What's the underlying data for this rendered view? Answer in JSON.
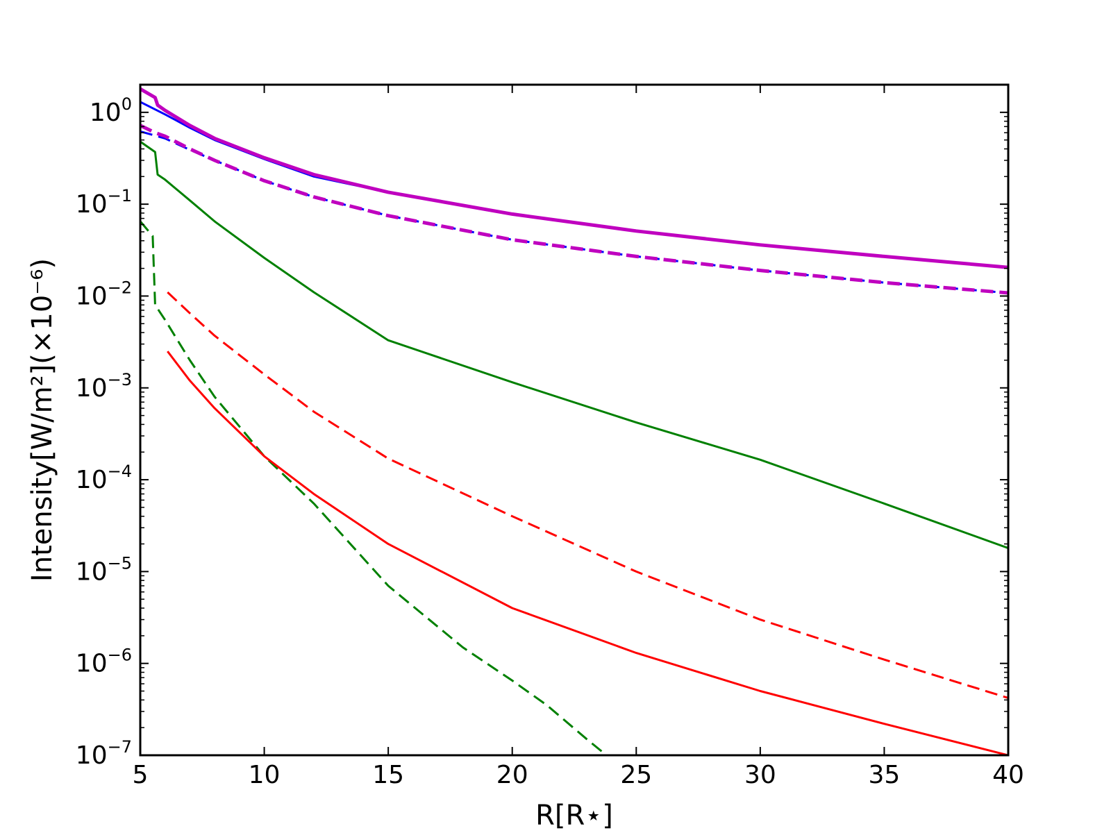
{
  "chart_data": {
    "type": "line",
    "xlabel": "R[R⋆]",
    "ylabel": "Intensity[W/m²](×10⁻⁶)",
    "xlim": [
      5,
      40
    ],
    "ylim": [
      1e-07,
      2
    ],
    "yscale": "log",
    "grid": false,
    "legend": "none",
    "x_ticks": [
      5,
      10,
      15,
      20,
      25,
      30,
      35,
      40
    ],
    "x_tick_labels": [
      "5",
      "10",
      "15",
      "20",
      "25",
      "30",
      "35",
      "40"
    ],
    "y_ticks": [
      1e-07,
      1e-06,
      1e-05,
      0.0001,
      0.001,
      0.01,
      0.1,
      1
    ],
    "y_tick_labels": [
      {
        "base": "10",
        "exp": "−7"
      },
      {
        "base": "10",
        "exp": "−6"
      },
      {
        "base": "10",
        "exp": "−5"
      },
      {
        "base": "10",
        "exp": "−4"
      },
      {
        "base": "10",
        "exp": "−3"
      },
      {
        "base": "10",
        "exp": "−2"
      },
      {
        "base": "10",
        "exp": "−1"
      },
      {
        "base": "10",
        "exp": "0"
      }
    ],
    "series": [
      {
        "color": "#0000ff",
        "dash": "solid",
        "width": 3,
        "points": [
          [
            5,
            1.3
          ],
          [
            6,
            0.95
          ],
          [
            7,
            0.68
          ],
          [
            8,
            0.5
          ],
          [
            10,
            0.31
          ],
          [
            12,
            0.2
          ],
          [
            15,
            0.135
          ],
          [
            20,
            0.078
          ],
          [
            25,
            0.051
          ],
          [
            30,
            0.036
          ],
          [
            35,
            0.027
          ],
          [
            40,
            0.0205
          ]
        ]
      },
      {
        "color": "#0000ff",
        "dash": "dashed",
        "width": 3,
        "points": [
          [
            5,
            0.62
          ],
          [
            6,
            0.52
          ],
          [
            7,
            0.39
          ],
          [
            8,
            0.3
          ],
          [
            10,
            0.18
          ],
          [
            12,
            0.12
          ],
          [
            15,
            0.075
          ],
          [
            20,
            0.041
          ],
          [
            25,
            0.027
          ],
          [
            30,
            0.019
          ],
          [
            35,
            0.014
          ],
          [
            40,
            0.0108
          ]
        ]
      },
      {
        "color": "#bf00bf",
        "dash": "solid",
        "width": 5,
        "points": [
          [
            5,
            1.8
          ],
          [
            5.6,
            1.45
          ],
          [
            5.7,
            1.2
          ],
          [
            6,
            1.05
          ],
          [
            7,
            0.72
          ],
          [
            8,
            0.52
          ],
          [
            10,
            0.32
          ],
          [
            12,
            0.21
          ],
          [
            15,
            0.135
          ],
          [
            20,
            0.078
          ],
          [
            25,
            0.051
          ],
          [
            30,
            0.036
          ],
          [
            35,
            0.027
          ],
          [
            40,
            0.0205
          ]
        ]
      },
      {
        "color": "#bf00bf",
        "dash": "dashed",
        "width": 5,
        "points": [
          [
            5,
            0.72
          ],
          [
            5.6,
            0.6
          ],
          [
            6,
            0.55
          ],
          [
            7,
            0.4
          ],
          [
            8,
            0.3
          ],
          [
            10,
            0.18
          ],
          [
            12,
            0.12
          ],
          [
            15,
            0.075
          ],
          [
            20,
            0.041
          ],
          [
            25,
            0.027
          ],
          [
            30,
            0.019
          ],
          [
            35,
            0.014
          ],
          [
            40,
            0.0108
          ]
        ]
      },
      {
        "color": "#008000",
        "dash": "solid",
        "width": 3,
        "points": [
          [
            5,
            0.48
          ],
          [
            5.6,
            0.37
          ],
          [
            5.7,
            0.21
          ],
          [
            6,
            0.185
          ],
          [
            7,
            0.11
          ],
          [
            8,
            0.065
          ],
          [
            10,
            0.026
          ],
          [
            12,
            0.011
          ],
          [
            15,
            0.0033
          ],
          [
            20,
            0.00115
          ],
          [
            25,
            0.00042
          ],
          [
            30,
            0.000165
          ],
          [
            35,
            5.5e-05
          ],
          [
            40,
            1.8e-05
          ]
        ]
      },
      {
        "color": "#008000",
        "dash": "dashed",
        "width": 3,
        "points": [
          [
            5,
            0.065
          ],
          [
            5.5,
            0.045
          ],
          [
            5.6,
            0.008
          ],
          [
            6,
            0.0055
          ],
          [
            7,
            0.002
          ],
          [
            8,
            0.0008
          ],
          [
            10,
            0.00018
          ],
          [
            12,
            5.5e-05
          ],
          [
            15,
            7e-06
          ],
          [
            18,
            1.5e-06
          ],
          [
            20,
            6.5e-07
          ],
          [
            21.4,
            3.5e-07
          ],
          [
            23,
            1.5e-07
          ],
          [
            23.8,
            1e-07
          ]
        ]
      },
      {
        "color": "#ff0000",
        "dash": "solid",
        "width": 3,
        "points": [
          [
            6.1,
            0.0025
          ],
          [
            7,
            0.0012
          ],
          [
            8,
            0.0006
          ],
          [
            10,
            0.00018
          ],
          [
            12,
            7e-05
          ],
          [
            15,
            2e-05
          ],
          [
            20,
            4e-06
          ],
          [
            25,
            1.3e-06
          ],
          [
            30,
            5e-07
          ],
          [
            35,
            2.2e-07
          ],
          [
            40,
            1e-07
          ]
        ]
      },
      {
        "color": "#ff0000",
        "dash": "dashed",
        "width": 3,
        "points": [
          [
            6.1,
            0.011
          ],
          [
            7,
            0.0065
          ],
          [
            8,
            0.0037
          ],
          [
            10,
            0.0014
          ],
          [
            12,
            0.00055
          ],
          [
            15,
            0.00017
          ],
          [
            20,
            4e-05
          ],
          [
            25,
            1e-05
          ],
          [
            30,
            3e-06
          ],
          [
            35,
            1.1e-06
          ],
          [
            40,
            4.2e-07
          ]
        ]
      }
    ]
  }
}
